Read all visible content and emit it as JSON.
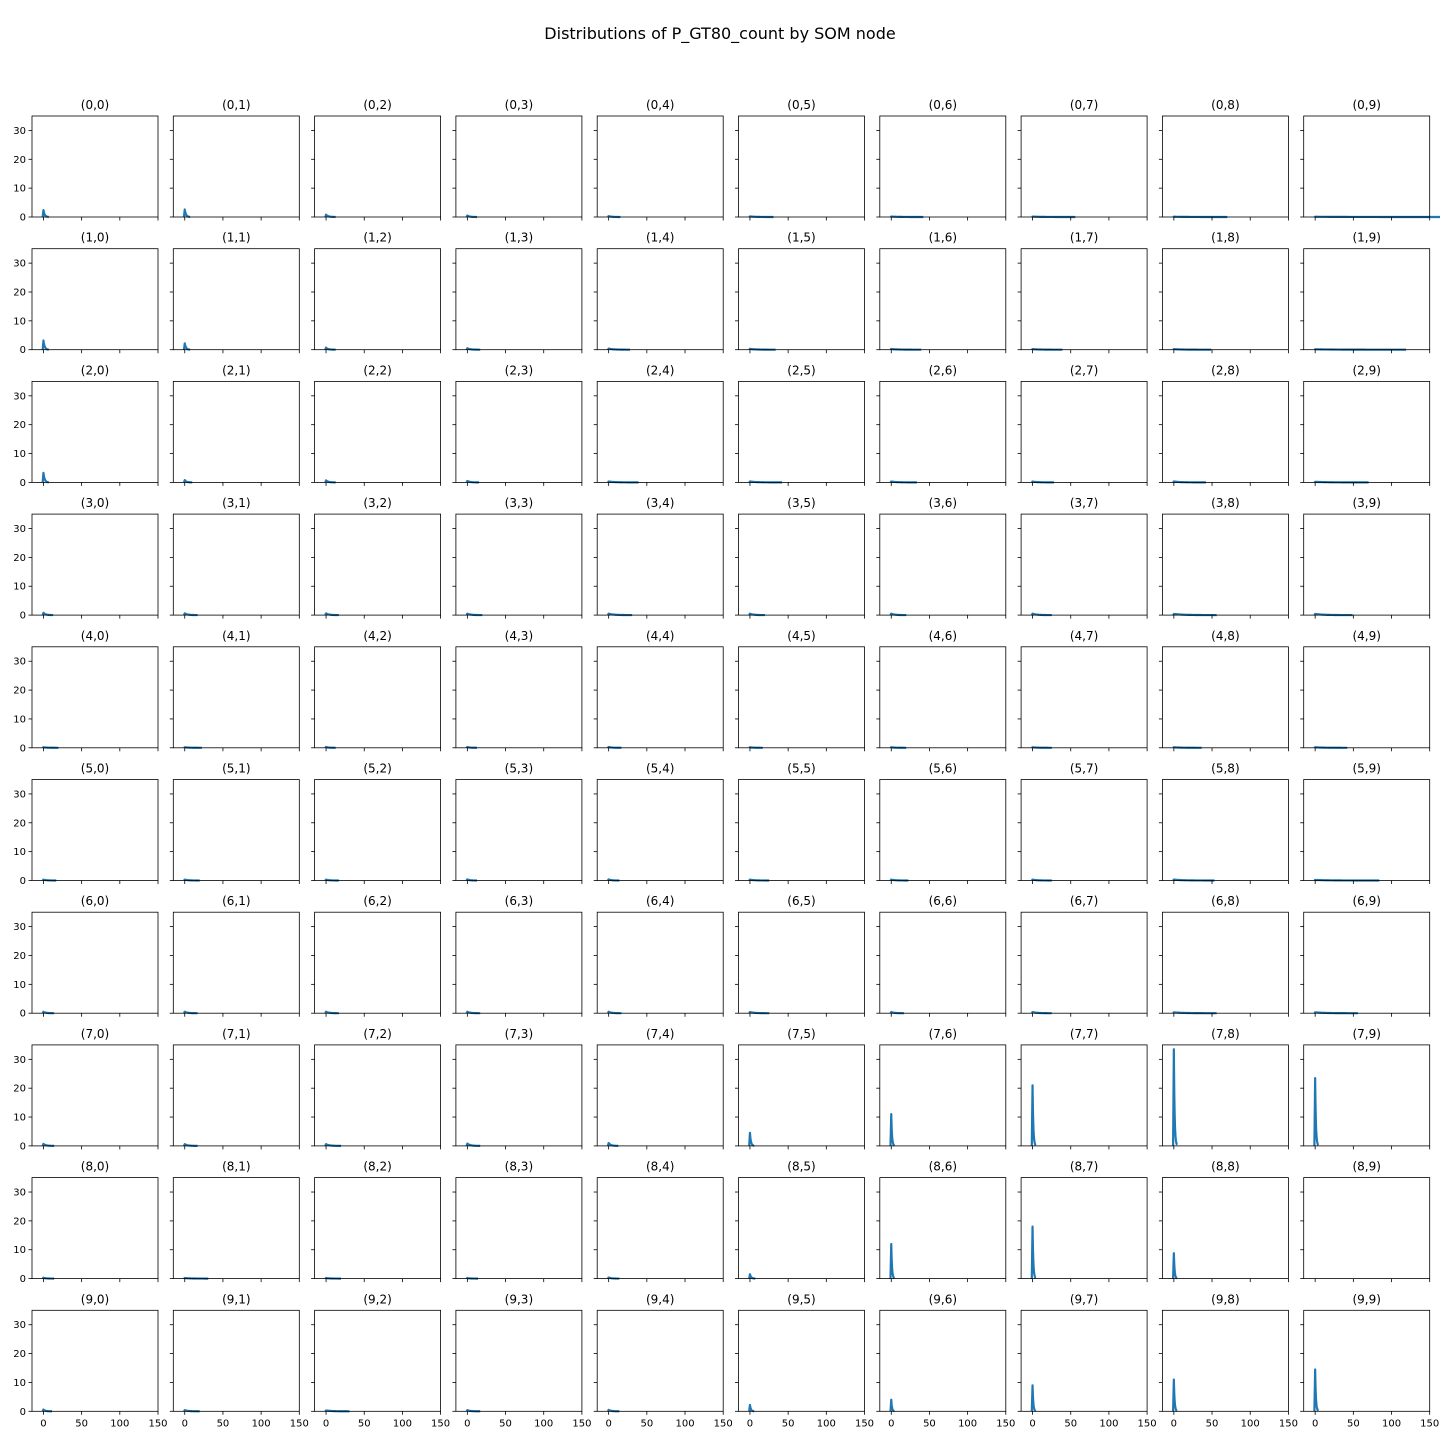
{
  "title": "Distributions of P_GT80_count by SOM node",
  "colors": {
    "line": "#1f77b4",
    "axes": "#000000"
  },
  "chart_data": {
    "type": "line",
    "description_grid": "10x10 small multiples, shared axes",
    "xlim": [
      -15,
      150
    ],
    "ylim": [
      0,
      35
    ],
    "xticks": [
      0,
      50,
      100,
      150
    ],
    "yticks": [
      0,
      10,
      20,
      30
    ],
    "panels": [
      {
        "label": "(0,0)",
        "peak": 2.4,
        "spread": 5
      },
      {
        "label": "(0,1)",
        "peak": 2.6,
        "spread": 5
      },
      {
        "label": "(0,2)",
        "peak": 0.8,
        "spread": 9
      },
      {
        "label": "(0,3)",
        "peak": 0.5,
        "spread": 9
      },
      {
        "label": "(0,4)",
        "peak": 0.3,
        "spread": 11
      },
      {
        "label": "(0,5)",
        "peak": 0.2,
        "spread": 22
      },
      {
        "label": "(0,6)",
        "peak": 0.15,
        "spread": 30
      },
      {
        "label": "(0,7)",
        "peak": 0.12,
        "spread": 40
      },
      {
        "label": "(0,8)",
        "peak": 0.1,
        "spread": 50
      },
      {
        "label": "(0,9)",
        "peak": 0.08,
        "spread": 140
      },
      {
        "label": "(1,0)",
        "peak": 3.2,
        "spread": 5
      },
      {
        "label": "(1,1)",
        "peak": 2.2,
        "spread": 5
      },
      {
        "label": "(1,2)",
        "peak": 0.7,
        "spread": 9
      },
      {
        "label": "(1,3)",
        "peak": 0.5,
        "spread": 12
      },
      {
        "label": "(1,4)",
        "peak": 0.4,
        "spread": 20
      },
      {
        "label": "(1,5)",
        "peak": 0.3,
        "spread": 24
      },
      {
        "label": "(1,6)",
        "peak": 0.25,
        "spread": 28
      },
      {
        "label": "(1,7)",
        "peak": 0.22,
        "spread": 28
      },
      {
        "label": "(1,8)",
        "peak": 0.2,
        "spread": 35
      },
      {
        "label": "(1,9)",
        "peak": 0.15,
        "spread": 85
      },
      {
        "label": "(2,0)",
        "peak": 3.3,
        "spread": 5
      },
      {
        "label": "(2,1)",
        "peak": 0.8,
        "spread": 7
      },
      {
        "label": "(2,2)",
        "peak": 0.7,
        "spread": 9
      },
      {
        "label": "(2,3)",
        "peak": 0.5,
        "spread": 11
      },
      {
        "label": "(2,4)",
        "peak": 0.3,
        "spread": 28
      },
      {
        "label": "(2,5)",
        "peak": 0.3,
        "spread": 30
      },
      {
        "label": "(2,6)",
        "peak": 0.3,
        "spread": 24
      },
      {
        "label": "(2,7)",
        "peak": 0.3,
        "spread": 20
      },
      {
        "label": "(2,8)",
        "peak": 0.3,
        "spread": 30
      },
      {
        "label": "(2,9)",
        "peak": 0.2,
        "spread": 50
      },
      {
        "label": "(3,0)",
        "peak": 0.8,
        "spread": 9
      },
      {
        "label": "(3,1)",
        "peak": 0.6,
        "spread": 12
      },
      {
        "label": "(3,2)",
        "peak": 0.6,
        "spread": 12
      },
      {
        "label": "(3,3)",
        "peak": 0.5,
        "spread": 14
      },
      {
        "label": "(3,4)",
        "peak": 0.5,
        "spread": 22
      },
      {
        "label": "(3,5)",
        "peak": 0.5,
        "spread": 14
      },
      {
        "label": "(3,6)",
        "peak": 0.5,
        "spread": 14
      },
      {
        "label": "(3,7)",
        "peak": 0.5,
        "spread": 18
      },
      {
        "label": "(3,8)",
        "peak": 0.4,
        "spread": 40
      },
      {
        "label": "(3,9)",
        "peak": 0.4,
        "spread": 35
      },
      {
        "label": "(4,0)",
        "peak": 0.2,
        "spread": 14
      },
      {
        "label": "(4,1)",
        "peak": 0.2,
        "spread": 16
      },
      {
        "label": "(4,2)",
        "peak": 0.3,
        "spread": 9
      },
      {
        "label": "(4,3)",
        "peak": 0.3,
        "spread": 9
      },
      {
        "label": "(4,4)",
        "peak": 0.3,
        "spread": 12
      },
      {
        "label": "(4,5)",
        "peak": 0.2,
        "spread": 12
      },
      {
        "label": "(4,6)",
        "peak": 0.2,
        "spread": 14
      },
      {
        "label": "(4,7)",
        "peak": 0.2,
        "spread": 18
      },
      {
        "label": "(4,8)",
        "peak": 0.2,
        "spread": 26
      },
      {
        "label": "(4,9)",
        "peak": 0.2,
        "spread": 30
      },
      {
        "label": "(5,0)",
        "peak": 0.3,
        "spread": 12
      },
      {
        "label": "(5,1)",
        "peak": 0.3,
        "spread": 14
      },
      {
        "label": "(5,2)",
        "peak": 0.3,
        "spread": 12
      },
      {
        "label": "(5,3)",
        "peak": 0.4,
        "spread": 9
      },
      {
        "label": "(5,4)",
        "peak": 0.4,
        "spread": 10
      },
      {
        "label": "(5,5)",
        "peak": 0.3,
        "spread": 18
      },
      {
        "label": "(5,6)",
        "peak": 0.3,
        "spread": 16
      },
      {
        "label": "(5,7)",
        "peak": 0.3,
        "spread": 18
      },
      {
        "label": "(5,8)",
        "peak": 0.3,
        "spread": 38
      },
      {
        "label": "(5,9)",
        "peak": 0.2,
        "spread": 60
      },
      {
        "label": "(6,0)",
        "peak": 0.5,
        "spread": 10
      },
      {
        "label": "(6,1)",
        "peak": 0.5,
        "spread": 12
      },
      {
        "label": "(6,2)",
        "peak": 0.5,
        "spread": 12
      },
      {
        "label": "(6,3)",
        "peak": 0.5,
        "spread": 12
      },
      {
        "label": "(6,4)",
        "peak": 0.5,
        "spread": 12
      },
      {
        "label": "(6,5)",
        "peak": 0.4,
        "spread": 18
      },
      {
        "label": "(6,6)",
        "peak": 0.4,
        "spread": 12
      },
      {
        "label": "(6,7)",
        "peak": 0.4,
        "spread": 18
      },
      {
        "label": "(6,8)",
        "peak": 0.3,
        "spread": 40
      },
      {
        "label": "(6,9)",
        "peak": 0.3,
        "spread": 40
      },
      {
        "label": "(7,0)",
        "peak": 0.7,
        "spread": 10
      },
      {
        "label": "(7,1)",
        "peak": 0.6,
        "spread": 12
      },
      {
        "label": "(7,2)",
        "peak": 0.6,
        "spread": 14
      },
      {
        "label": "(7,3)",
        "peak": 0.8,
        "spread": 12
      },
      {
        "label": "(7,4)",
        "peak": 1.0,
        "spread": 9
      },
      {
        "label": "(7,5)",
        "peak": 4.5,
        "spread": 4
      },
      {
        "label": "(7,6)",
        "peak": 11.0,
        "spread": 3
      },
      {
        "label": "(7,7)",
        "peak": 21.0,
        "spread": 3
      },
      {
        "label": "(7,8)",
        "peak": 33.5,
        "spread": 3
      },
      {
        "label": "(7,9)",
        "peak": 23.5,
        "spread": 3
      },
      {
        "label": "(8,0)",
        "peak": 0.3,
        "spread": 10
      },
      {
        "label": "(8,1)",
        "peak": 0.2,
        "spread": 22
      },
      {
        "label": "(8,2)",
        "peak": 0.2,
        "spread": 14
      },
      {
        "label": "(8,3)",
        "peak": 0.2,
        "spread": 10
      },
      {
        "label": "(8,4)",
        "peak": 0.4,
        "spread": 10
      },
      {
        "label": "(8,5)",
        "peak": 1.5,
        "spread": 5
      },
      {
        "label": "(8,6)",
        "peak": 12.0,
        "spread": 3
      },
      {
        "label": "(8,7)",
        "peak": 18.0,
        "spread": 3
      },
      {
        "label": "(8,8)",
        "peak": 8.8,
        "spread": 3
      },
      {
        "label": "(8,9)",
        "peak": 0,
        "spread": 0
      },
      {
        "label": "(9,0)",
        "peak": 0.6,
        "spread": 8
      },
      {
        "label": "(9,1)",
        "peak": 0.4,
        "spread": 14
      },
      {
        "label": "(9,2)",
        "peak": 0.3,
        "spread": 22
      },
      {
        "label": "(9,3)",
        "peak": 0.4,
        "spread": 12
      },
      {
        "label": "(9,4)",
        "peak": 0.5,
        "spread": 10
      },
      {
        "label": "(9,5)",
        "peak": 2.2,
        "spread": 4
      },
      {
        "label": "(9,6)",
        "peak": 4.0,
        "spread": 3
      },
      {
        "label": "(9,7)",
        "peak": 9.0,
        "spread": 3
      },
      {
        "label": "(9,8)",
        "peak": 11.0,
        "spread": 3
      },
      {
        "label": "(9,9)",
        "peak": 14.5,
        "spread": 3
      }
    ]
  }
}
